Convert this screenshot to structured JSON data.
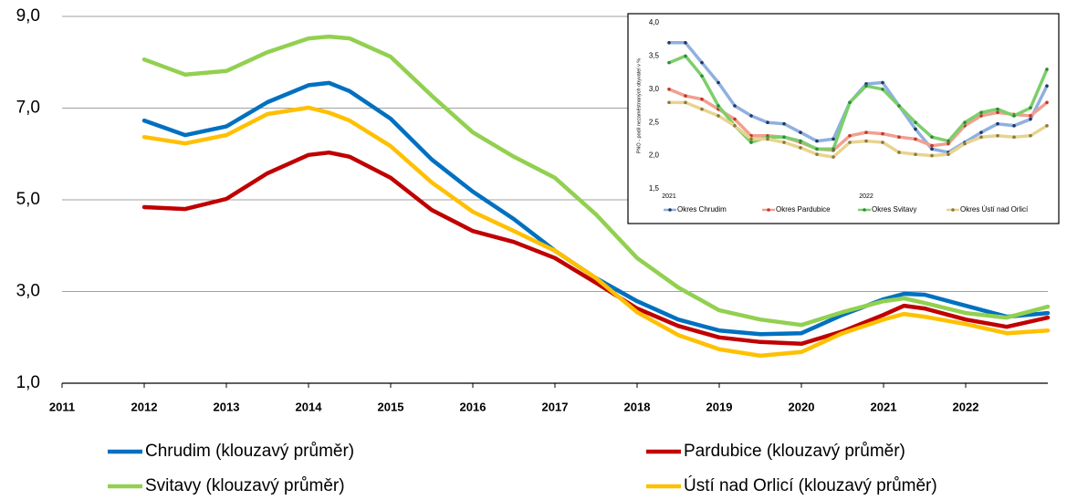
{
  "chart_data": [
    {
      "type": "line",
      "x": [
        2012,
        2012.5,
        2013,
        2013.5,
        2014,
        2014.25,
        2014.5,
        2015,
        2015.5,
        2016,
        2016.5,
        2017,
        2017.5,
        2018,
        2018.5,
        2019,
        2019.5,
        2020,
        2020.5,
        2021,
        2021.25,
        2021.5,
        2022,
        2022.5,
        2023
      ],
      "xlim": [
        2011,
        2023
      ],
      "xticks": [
        2011,
        2012,
        2013,
        2014,
        2015,
        2016,
        2017,
        2018,
        2019,
        2020,
        2021,
        2022
      ],
      "ylim": [
        1,
        9
      ],
      "yticks": [
        {
          "value": 1,
          "label": "1,0"
        },
        {
          "value": 3,
          "label": "3,0"
        },
        {
          "value": 5,
          "label": "5,0"
        },
        {
          "value": 7,
          "label": "7,0"
        },
        {
          "value": 9,
          "label": "9,0"
        }
      ],
      "grid": true,
      "series": [
        {
          "name": "Chrudim (klouzavý průměr)",
          "color": "#0070c0",
          "values": [
            6.73,
            6.41,
            6.6,
            7.13,
            7.5,
            7.55,
            7.37,
            6.77,
            5.88,
            5.18,
            4.58,
            3.89,
            3.29,
            2.79,
            2.39,
            2.15,
            2.07,
            2.09,
            2.49,
            2.83,
            2.95,
            2.93,
            2.69,
            2.45,
            2.53
          ]
        },
        {
          "name": "Pardubice (klouzavý průměr)",
          "color": "#c00000",
          "values": [
            4.84,
            4.8,
            5.02,
            5.58,
            5.98,
            6.03,
            5.94,
            5.48,
            4.78,
            4.32,
            4.08,
            3.73,
            3.19,
            2.63,
            2.25,
            2.0,
            1.9,
            1.86,
            2.13,
            2.49,
            2.69,
            2.63,
            2.39,
            2.23,
            2.43
          ]
        },
        {
          "name": "Svitavy (klouzavý průměr)",
          "color": "#92d050",
          "values": [
            8.06,
            7.73,
            7.81,
            8.22,
            8.52,
            8.56,
            8.52,
            8.12,
            7.27,
            6.47,
            5.94,
            5.48,
            4.68,
            3.73,
            3.09,
            2.59,
            2.39,
            2.27,
            2.55,
            2.79,
            2.85,
            2.75,
            2.53,
            2.43,
            2.67
          ]
        },
        {
          "name": "Ústí nad Orlicí (klouzavý průměr)",
          "color": "#ffc000",
          "values": [
            6.37,
            6.23,
            6.41,
            6.87,
            7.01,
            6.9,
            6.73,
            6.17,
            5.38,
            4.74,
            4.32,
            3.89,
            3.29,
            2.55,
            2.05,
            1.74,
            1.6,
            1.68,
            2.09,
            2.39,
            2.51,
            2.45,
            2.29,
            2.09,
            2.15
          ]
        }
      ]
    },
    {
      "type": "line",
      "y_label": "PNO - podíl nezaměstnaných obyvatel v %",
      "categories": [
        "2021",
        null,
        null,
        null,
        null,
        null,
        null,
        null,
        null,
        null,
        null,
        null,
        "2022",
        null,
        null,
        null,
        null,
        null,
        null,
        null,
        null,
        null,
        null,
        null
      ],
      "ylim": [
        1.5,
        4
      ],
      "yticks": [
        {
          "value": 1.5,
          "label": "1,5"
        },
        {
          "value": 2,
          "label": "2,0"
        },
        {
          "value": 2.5,
          "label": "2,5"
        },
        {
          "value": 3,
          "label": "3,0"
        },
        {
          "value": 3.5,
          "label": "3,5"
        },
        {
          "value": 4,
          "label": "4,0"
        }
      ],
      "grid": false,
      "series": [
        {
          "name": "Okres Chrudim",
          "color": "#203864",
          "line_color": "#8fb0e0",
          "values": [
            3.7,
            3.7,
            3.4,
            3.1,
            2.75,
            2.6,
            2.5,
            2.48,
            2.35,
            2.22,
            2.25,
            2.8,
            3.08,
            3.1,
            2.75,
            2.4,
            2.1,
            2.05,
            2.2,
            2.35,
            2.48,
            2.45,
            2.55,
            3.05
          ]
        },
        {
          "name": "Okres Pardubice",
          "color": "#c0392b",
          "line_color": "#f0a090",
          "values": [
            3.0,
            2.9,
            2.85,
            2.7,
            2.55,
            2.3,
            2.3,
            2.28,
            2.2,
            2.1,
            2.08,
            2.3,
            2.35,
            2.33,
            2.28,
            2.25,
            2.15,
            2.18,
            2.45,
            2.6,
            2.65,
            2.62,
            2.6,
            2.8
          ]
        },
        {
          "name": "Okres Svitavy",
          "color": "#2e8b3a",
          "line_color": "#7ccf6a",
          "values": [
            3.4,
            3.5,
            3.2,
            2.75,
            2.45,
            2.2,
            2.28,
            2.28,
            2.22,
            2.1,
            2.1,
            2.8,
            3.05,
            3.0,
            2.75,
            2.5,
            2.28,
            2.22,
            2.5,
            2.65,
            2.7,
            2.6,
            2.72,
            3.3
          ]
        },
        {
          "name": "Okres Ústí nad Orlicí",
          "color": "#8a7a40",
          "line_color": "#e8d490",
          "values": [
            2.8,
            2.8,
            2.7,
            2.6,
            2.45,
            2.25,
            2.25,
            2.2,
            2.12,
            2.02,
            1.98,
            2.2,
            2.22,
            2.2,
            2.05,
            2.02,
            2.0,
            2.02,
            2.18,
            2.28,
            2.3,
            2.28,
            2.3,
            2.45
          ]
        }
      ]
    }
  ]
}
